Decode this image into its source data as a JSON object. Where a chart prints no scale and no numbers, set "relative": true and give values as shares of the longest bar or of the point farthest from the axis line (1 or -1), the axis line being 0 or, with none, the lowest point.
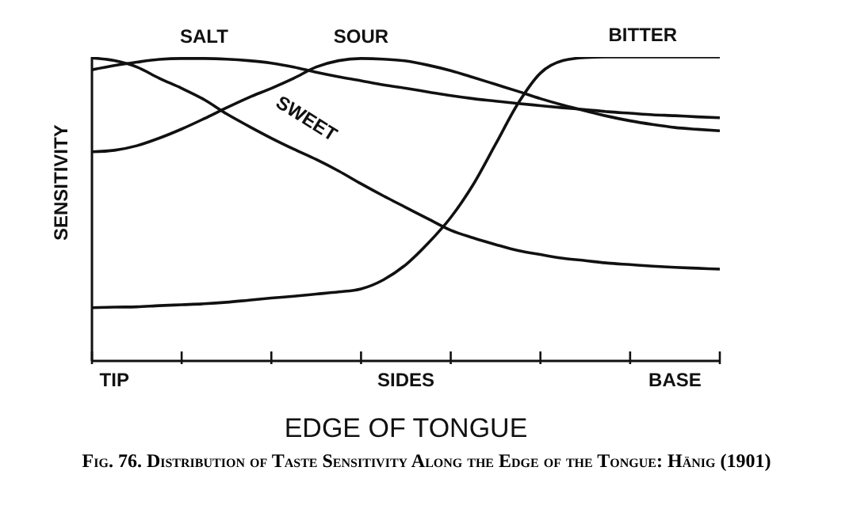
{
  "chart_data": {
    "type": "line",
    "relative": true,
    "xlabel": "EDGE OF TONGUE",
    "ylabel": "SENSITIVITY",
    "annotations": [
      "Fig. 76. Distribution of Taste Sensitivity Along the Edge of the Tongue: Hänig (1901)"
    ],
    "categories": [
      null,
      "TIP",
      null,
      null,
      null,
      null,
      null,
      null,
      null,
      null,
      null,
      null,
      null,
      null,
      "SIDES",
      null,
      null,
      null,
      null,
      null,
      null,
      null,
      null,
      null,
      null,
      null,
      "BASE",
      null,
      null
    ],
    "legend": false,
    "marker": "none",
    "line_style": "solid",
    "grid": false,
    "series": [
      {
        "name": "SALT",
        "color": "#111111",
        "values": [
          0.958,
          0.972,
          0.983,
          0.992,
          0.995,
          0.995,
          0.993,
          0.988,
          0.98,
          0.967,
          0.95,
          0.935,
          0.922,
          0.908,
          0.897,
          0.885,
          0.873,
          0.863,
          0.855,
          0.847,
          0.84,
          0.833,
          0.827,
          0.82,
          0.815,
          0.81,
          0.807,
          0.803,
          0.8
        ]
      },
      {
        "name": "SOUR",
        "color": "#111111",
        "values": [
          0.688,
          0.693,
          0.708,
          0.733,
          0.763,
          0.797,
          0.833,
          0.867,
          0.897,
          0.93,
          0.967,
          0.988,
          0.995,
          0.993,
          0.987,
          0.973,
          0.955,
          0.933,
          0.91,
          0.887,
          0.863,
          0.842,
          0.823,
          0.805,
          0.79,
          0.778,
          0.768,
          0.762,
          0.757
        ]
      },
      {
        "name": "BITTER",
        "color": "#111111",
        "values": [
          0.175,
          0.177,
          0.178,
          0.182,
          0.185,
          0.188,
          0.193,
          0.2,
          0.207,
          0.213,
          0.22,
          0.227,
          0.237,
          0.267,
          0.317,
          0.388,
          0.472,
          0.58,
          0.713,
          0.847,
          0.947,
          0.988,
          0.998,
          1,
          1,
          1,
          1,
          1,
          1
        ]
      },
      {
        "name": "SWEET",
        "color": "#111111",
        "values": [
          0.997,
          0.988,
          0.967,
          0.93,
          0.897,
          0.86,
          0.813,
          0.772,
          0.733,
          0.697,
          0.663,
          0.625,
          0.583,
          0.543,
          0.505,
          0.467,
          0.43,
          0.405,
          0.383,
          0.363,
          0.35,
          0.338,
          0.33,
          0.322,
          0.317,
          0.312,
          0.308,
          0.305,
          0.302
        ]
      }
    ]
  }
}
